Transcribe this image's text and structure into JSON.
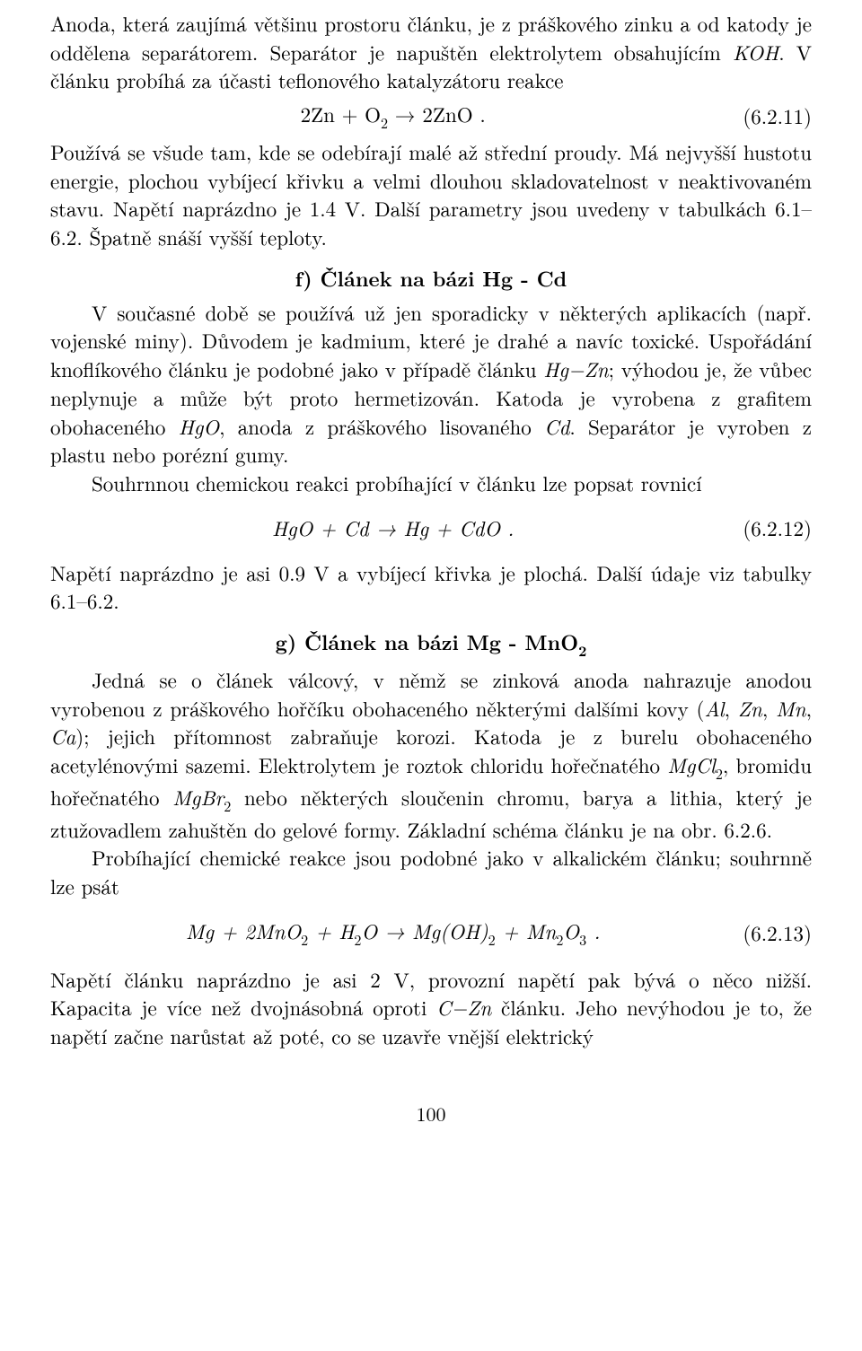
{
  "p1": {
    "t1": "Anoda, která zaujímá většinu prostoru článku, je z práškového zinku a od katody je oddělena separátorem. Separátor je napuštěn elektrolytem obsahujícím ",
    "koh": "KOH",
    "t2": ". V článku probíhá za účasti teflonového katalyzátoru reakce"
  },
  "eq1": {
    "lhs1": "2Zn + O",
    "sub1": "2",
    "arrow": " → ",
    "rhs1": "2ZnO .",
    "num": "(6.2.11)"
  },
  "p2": {
    "t1": "Používá se všude tam, kde se odebírají malé až střední proudy. Má nejvyšší hustotu energie, plochou vybíjecí křivku a velmi dlouhou skladovatelnost v neaktivovaném stavu. Napětí naprázdno je 1.4 V. Další parametry jsou uvedeny v tabulkách 6.1–6.2. Špatně snáší vyšší teploty."
  },
  "h_f": "f) Článek na bázi Hg - Cd",
  "p3": {
    "t1": "V současné době se používá už jen sporadicky v některých aplikacích (např. vojenské miny). Důvodem je kadmium, které je drahé a navíc toxické. Uspořádání knoflíkového článku je podobné jako v případě článku ",
    "hgzn": "Hg−Zn",
    "t2": "; výhodou je, že vůbec neplynuje a může být proto hermetizován. Katoda je vyrobena z grafitem obohaceného ",
    "hgo": "HgO",
    "t3": ", anoda z práškového lisovaného ",
    "cd": "Cd",
    "t4": ". Separátor je vyroben z plastu nebo porézní gumy."
  },
  "p4": {
    "t1": "Souhrnnou chemickou reakci probíhající v článku lze popsat rovnicí"
  },
  "eq2": {
    "body": "HgO + Cd → Hg + CdO .",
    "num": "(6.2.12)"
  },
  "p5": {
    "t1": "Napětí naprázdno je asi 0.9 V a vybíjecí křivka je plochá. Další údaje viz tabulky 6.1–6.2."
  },
  "h_g_a": "g) Článek na bázi Mg - MnO",
  "h_g_sub": "2",
  "p6": {
    "t1": "Jedná se o článek válcový, v němž se zinková anoda nahrazuje anodou vyrobenou z práškového hořčíku obohaceného některými dalšími kovy (",
    "al": "Al",
    "c1": ", ",
    "zn": "Zn",
    "c2": ", ",
    "mn": "Mn",
    "c3": ", ",
    "ca": "Ca",
    "t2": "); jejich přítomnost zabraňuje korozi. Katoda je z burelu obohaceného acetylénovými sazemi. Elektrolytem je roztok chloridu hořečnatého ",
    "mgcl": "MgCl",
    "mgcl_sub": "2",
    "t3": ", bromidu hořečnatého ",
    "mgbr": "MgBr",
    "mgbr_sub": "2",
    "t4": " nebo některých sloučenin chromu, barya a lithia, který je ztužovadlem zahuštěn do gelové formy. Základní schéma článku je na obr. 6.2.6."
  },
  "p7": {
    "t1": "Probíhající chemické reakce jsou podobné jako v alkalickém článku; souhrnně lze psát"
  },
  "eq3": {
    "a": "Mg + 2MnO",
    "s1": "2",
    "b": " + H",
    "s2": "2",
    "c": "O → Mg(OH)",
    "s3": "2",
    "d": " + Mn",
    "s4": "2",
    "e": "O",
    "s5": "3",
    "f": " .",
    "num": "(6.2.13)"
  },
  "p8": {
    "t1": "Napětí článku naprázdno je asi 2 V, provozní napětí pak bývá o něco nižší. Kapacita je více než dvojnásobná oproti ",
    "czn": "C−Zn",
    "t2": " článku. Jeho nevýhodou je to, že napětí začne narůstat až poté, co se uzavře vnější elektrický"
  },
  "pagenum": "100"
}
